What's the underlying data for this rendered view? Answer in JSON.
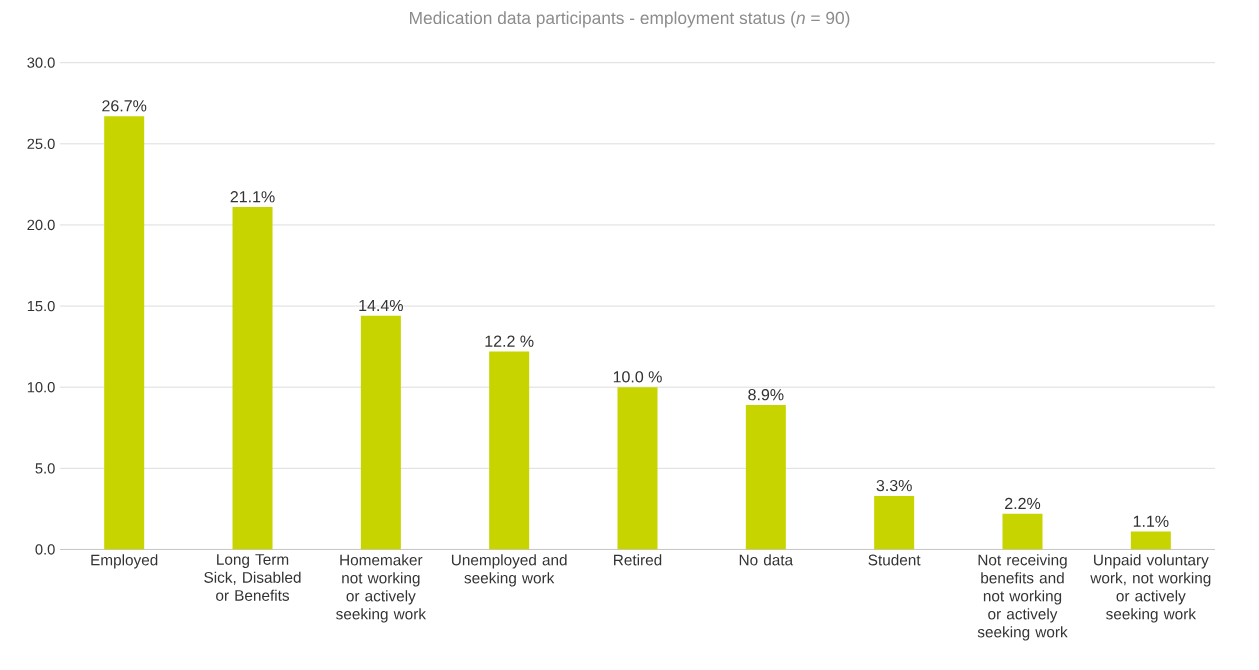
{
  "chart_data": {
    "type": "bar",
    "title": "Medication data participants - employment status (*n* = 90)",
    "categories": [
      "Employed",
      "Long Term Sick, Disabled or Benefits",
      "Homemaker not working or actively seeking work",
      "Unemployed and seeking work",
      "Retired",
      "No data",
      "Student",
      "Not receiving benefits and not working or actively seeking work",
      "Unpaid voluntary work, not working or actively seeking work"
    ],
    "values": [
      26.7,
      21.1,
      14.4,
      12.2,
      10.0,
      8.9,
      3.3,
      2.2,
      1.1
    ],
    "value_labels": [
      "26.7%",
      "21.1%",
      "14.4%",
      "12.2 %",
      "10.0 %",
      "8.9%",
      "3.3%",
      "2.2%",
      "1.1%"
    ],
    "color": "#c8d400",
    "ylim": [
      0,
      30
    ],
    "yticks": [
      {
        "value": 0,
        "label": "0.0"
      },
      {
        "value": 5,
        "label": "5.0"
      },
      {
        "value": 10,
        "label": "10.0"
      },
      {
        "value": 15,
        "label": "15.0"
      },
      {
        "value": 20,
        "label": "20.0"
      },
      {
        "value": 25,
        "label": "25.0"
      },
      {
        "value": 30,
        "label": "30.0"
      }
    ],
    "grid": "y"
  }
}
